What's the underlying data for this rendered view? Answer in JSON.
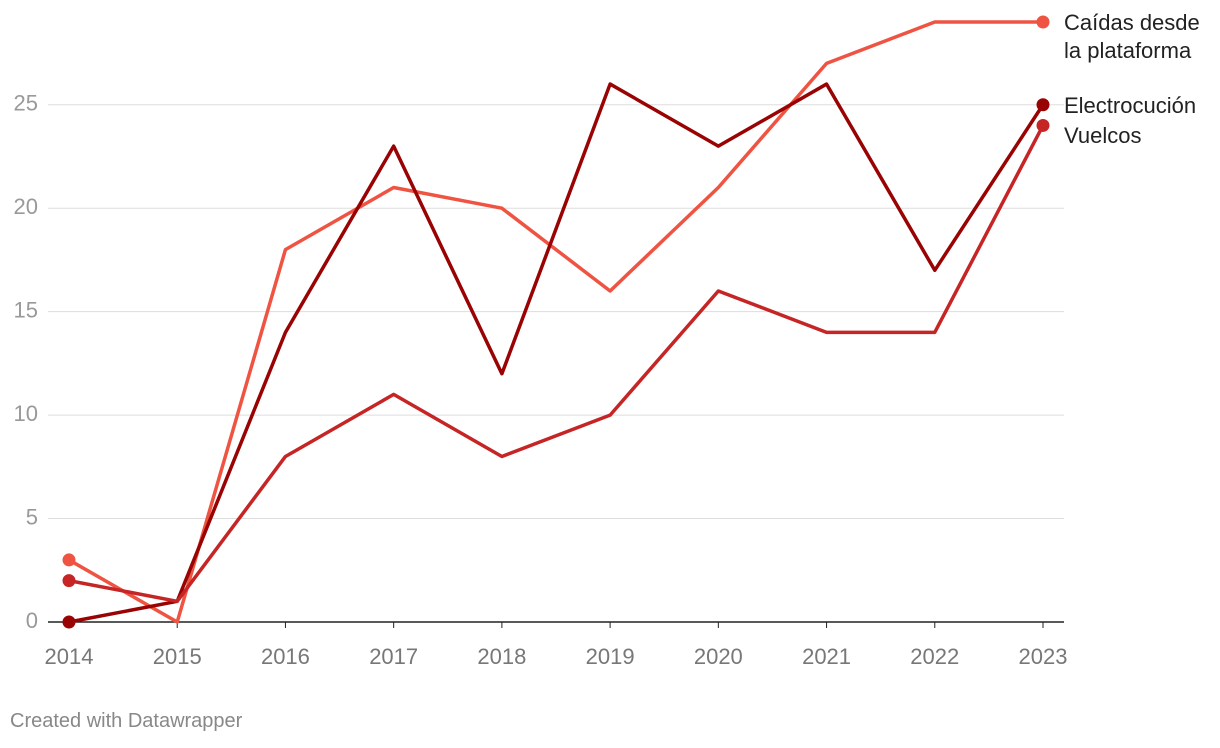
{
  "chart_data": {
    "type": "line",
    "categories": [
      "2014",
      "2015",
      "2016",
      "2017",
      "2018",
      "2019",
      "2020",
      "2021",
      "2022",
      "2023"
    ],
    "series": [
      {
        "name": "Caídas desde la plataforma",
        "color": "#ef5443",
        "values": [
          3,
          0,
          18,
          21,
          20,
          16,
          21,
          27,
          29,
          29
        ]
      },
      {
        "name": "Electrocución",
        "color": "#990303",
        "values": [
          0,
          1,
          14,
          23,
          12,
          26,
          23,
          26,
          17,
          25
        ]
      },
      {
        "name": "Vuelcos",
        "color": "#c62525",
        "values": [
          2,
          1,
          8,
          11,
          8,
          10,
          16,
          14,
          14,
          24
        ]
      }
    ],
    "ylim": [
      0,
      29
    ],
    "yticks": [
      0,
      5,
      10,
      15,
      20,
      25
    ],
    "grid": true,
    "source": "Created with Datawrapper"
  }
}
